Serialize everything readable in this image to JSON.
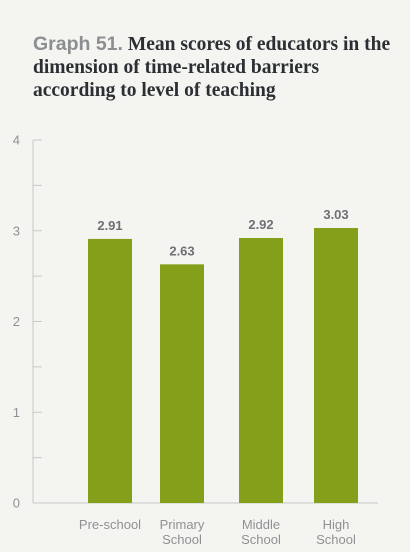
{
  "title_prefix": "Graph 51.",
  "title_text": "Mean scores of educators in the dimension of time-related barriers according to level of teaching",
  "chart_data": {
    "type": "bar",
    "categories": [
      [
        "Pre-school"
      ],
      [
        "Primary",
        "School"
      ],
      [
        "Middle",
        "School"
      ],
      [
        "High",
        "School"
      ]
    ],
    "values": [
      2.91,
      2.63,
      2.92,
      3.03
    ],
    "value_labels": [
      "2.91",
      "2.63",
      "2.92",
      "3.03"
    ],
    "ylim": [
      0,
      4
    ],
    "yticks": [
      0,
      1,
      2,
      3,
      4
    ],
    "minor_ticks": [
      0.5,
      1.5,
      2.5,
      3.5
    ],
    "bar_color": "#84a01a",
    "grid": false
  }
}
